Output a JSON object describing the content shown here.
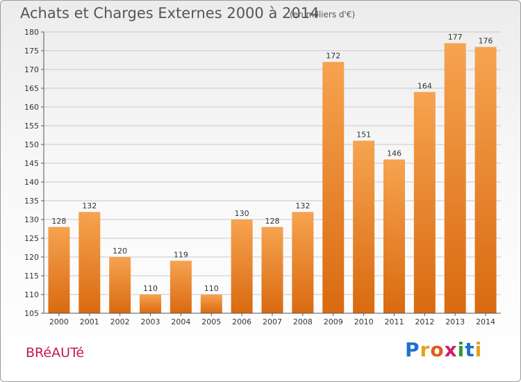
{
  "header": {
    "title": "Achats et Charges Externes 2000 à 2014",
    "unit": "(en milliers d'€)"
  },
  "footer": {
    "town": "BRéAUTé",
    "logo_letters": [
      "P",
      "r",
      "o",
      "x",
      "i",
      "t",
      "i"
    ],
    "logo_colors": [
      "#1f6fcf",
      "#e6a01a",
      "#e05a1a",
      "#d01e6e",
      "#2d9a2d",
      "#1f6fcf",
      "#e6a01a"
    ]
  },
  "colors": {
    "bar_light": "#f6a350",
    "bar_dark": "#d96a10",
    "grid": "#c8c8c8",
    "axis": "#555555"
  },
  "chart_data": {
    "type": "bar",
    "title": "Achats et Charges Externes 2000 à 2014",
    "subtitle": "(en milliers d'€)",
    "categories": [
      "2000",
      "2001",
      "2002",
      "2003",
      "2004",
      "2005",
      "2006",
      "2007",
      "2008",
      "2009",
      "2010",
      "2011",
      "2012",
      "2013",
      "2014"
    ],
    "values": [
      128,
      132,
      120,
      110,
      119,
      110,
      130,
      128,
      132,
      172,
      151,
      146,
      164,
      177,
      176
    ],
    "ylim": [
      105,
      180
    ],
    "yticks": [
      105,
      110,
      115,
      120,
      125,
      130,
      135,
      140,
      145,
      150,
      155,
      160,
      165,
      170,
      175,
      180
    ],
    "xlabel": "",
    "ylabel": "",
    "grid": true,
    "legend": "none"
  }
}
